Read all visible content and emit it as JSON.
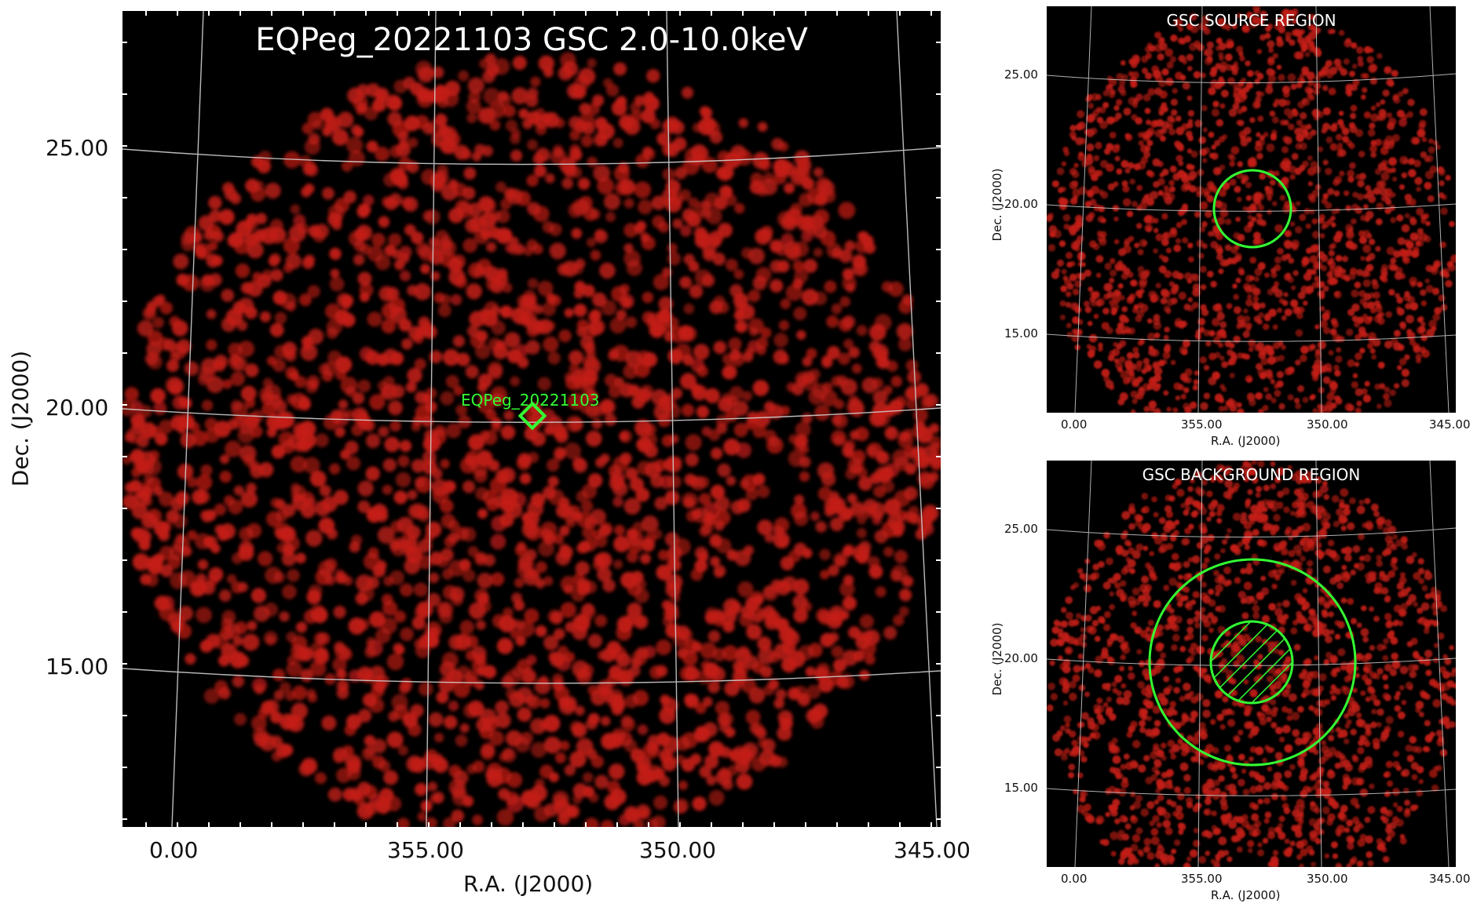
{
  "colors": {
    "background": "#000000",
    "counts": "#c41e16",
    "grid": "#cfcfcf",
    "region": "#33ff33",
    "title_text": "#ffffff",
    "axis_text": "#111111"
  },
  "main": {
    "title": "EQPeg_20221103 GSC 2.0-10.0keV",
    "source_label": "EQPeg_20221103",
    "xlabel": "R.A. (J2000)",
    "ylabel": "Dec. (J2000)",
    "xticks": [
      "0.00",
      "355.00",
      "350.00",
      "345.00"
    ],
    "yticks": [
      "25.00",
      "20.00",
      "15.00"
    ],
    "marker_icon": "diamond-icon"
  },
  "source_panel": {
    "title": "GSC SOURCE REGION",
    "xlabel": "R.A. (J2000)",
    "ylabel": "Dec. (J2000)",
    "xticks": [
      "0.00",
      "355.00",
      "350.00",
      "345.00"
    ],
    "yticks": [
      "25.00",
      "20.00",
      "15.00"
    ],
    "region": "circle"
  },
  "background_panel": {
    "title": "GSC BACKGROUND REGION",
    "xlabel": "R.A. (J2000)",
    "ylabel": "Dec. (J2000)",
    "xticks": [
      "0.00",
      "355.00",
      "350.00",
      "345.00"
    ],
    "yticks": [
      "25.00",
      "20.00",
      "15.00"
    ],
    "region": "annulus with hatched excluded source circle"
  }
}
